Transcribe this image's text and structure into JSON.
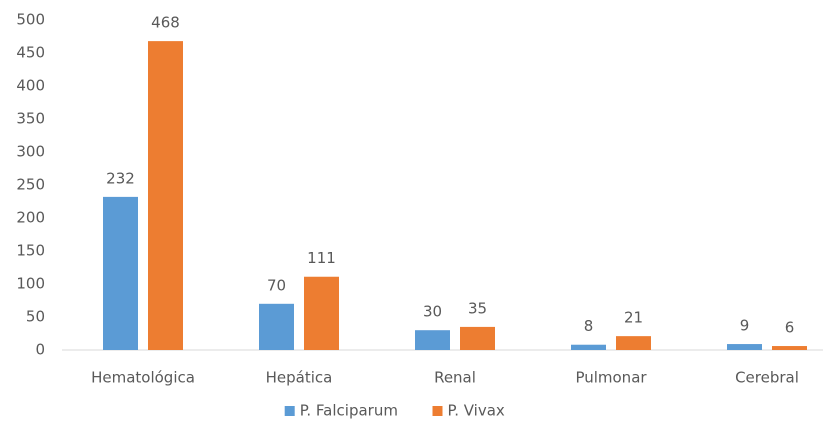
{
  "chart_data": {
    "type": "bar",
    "categories": [
      "Hematológica",
      "Hepática",
      "Renal",
      "Pulmonar",
      "Cerebral"
    ],
    "series": [
      {
        "name": "P. Falciparum",
        "color": "#5b9bd5",
        "values": [
          232,
          70,
          30,
          8,
          9
        ]
      },
      {
        "name": "P. Vivax",
        "color": "#ed7d31",
        "values": [
          468,
          111,
          35,
          21,
          6
        ]
      }
    ],
    "ylim": [
      0,
      500
    ],
    "yticks": [
      0,
      50,
      100,
      150,
      200,
      250,
      300,
      350,
      400,
      450,
      500
    ],
    "grid": false,
    "legend": "bottom",
    "data_labels": true
  }
}
